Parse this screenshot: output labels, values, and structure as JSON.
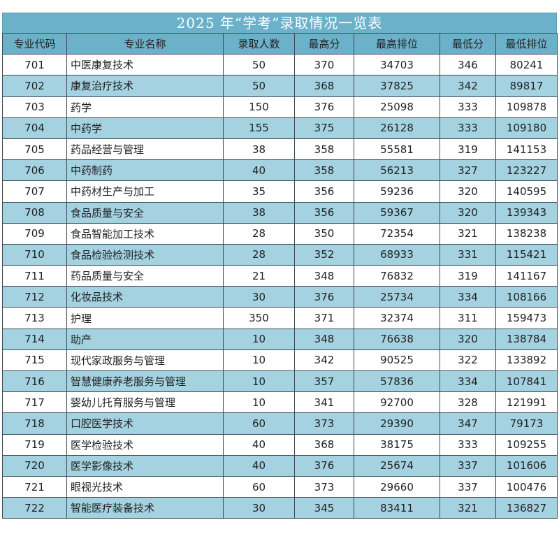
{
  "title": "2025 年“学考”录取情况一览表",
  "headers": [
    "专业代码",
    "专业名称",
    "录取人数",
    "最高分",
    "最高排位",
    "最低分",
    "最低排位"
  ],
  "rows": [
    [
      "701",
      "中医康复技术",
      "50",
      "370",
      "34703",
      "346",
      "80241"
    ],
    [
      "702",
      "康复治疗技术",
      "50",
      "368",
      "37825",
      "342",
      "89817"
    ],
    [
      "703",
      "药学",
      "150",
      "376",
      "25098",
      "333",
      "109878"
    ],
    [
      "704",
      "中药学",
      "155",
      "375",
      "26128",
      "333",
      "109180"
    ],
    [
      "705",
      "药品经营与管理",
      "38",
      "358",
      "55581",
      "319",
      "141153"
    ],
    [
      "706",
      "中药制药",
      "40",
      "358",
      "56213",
      "327",
      "123227"
    ],
    [
      "707",
      "中药材生产与加工",
      "35",
      "356",
      "59236",
      "320",
      "140595"
    ],
    [
      "708",
      "食品质量与安全",
      "38",
      "356",
      "59367",
      "320",
      "139343"
    ],
    [
      "709",
      "食品智能加工技术",
      "28",
      "350",
      "72354",
      "321",
      "138238"
    ],
    [
      "710",
      "食品检验检测技术",
      "28",
      "352",
      "68933",
      "331",
      "115421"
    ],
    [
      "711",
      "药品质量与安全",
      "21",
      "348",
      "76832",
      "319",
      "141167"
    ],
    [
      "712",
      "化妆品技术",
      "30",
      "376",
      "25734",
      "334",
      "108166"
    ],
    [
      "713",
      "护理",
      "350",
      "371",
      "32374",
      "311",
      "159473"
    ],
    [
      "714",
      "助产",
      "10",
      "348",
      "76638",
      "320",
      "138784"
    ],
    [
      "715",
      "现代家政服务与管理",
      "10",
      "342",
      "90525",
      "322",
      "133892"
    ],
    [
      "716",
      "智慧健康养老服务与管理",
      "10",
      "357",
      "57836",
      "334",
      "107841"
    ],
    [
      "717",
      "婴幼儿托育服务与管理",
      "10",
      "341",
      "92700",
      "328",
      "121991"
    ],
    [
      "718",
      "口腔医学技术",
      "60",
      "373",
      "29390",
      "347",
      "79173"
    ],
    [
      "719",
      "医学检验技术",
      "40",
      "368",
      "38175",
      "333",
      "109255"
    ],
    [
      "720",
      "医学影像技术",
      "40",
      "376",
      "25674",
      "337",
      "101606"
    ],
    [
      "721",
      "眼视光技术",
      "60",
      "373",
      "29660",
      "337",
      "100476"
    ],
    [
      "722",
      "智能医疗装备技术",
      "30",
      "345",
      "83411",
      "321",
      "136827"
    ]
  ],
  "colors": {
    "header_bg": "#6bb1c9",
    "alt_row_bg": "#a4d2e1",
    "border": "#3d4c55"
  }
}
